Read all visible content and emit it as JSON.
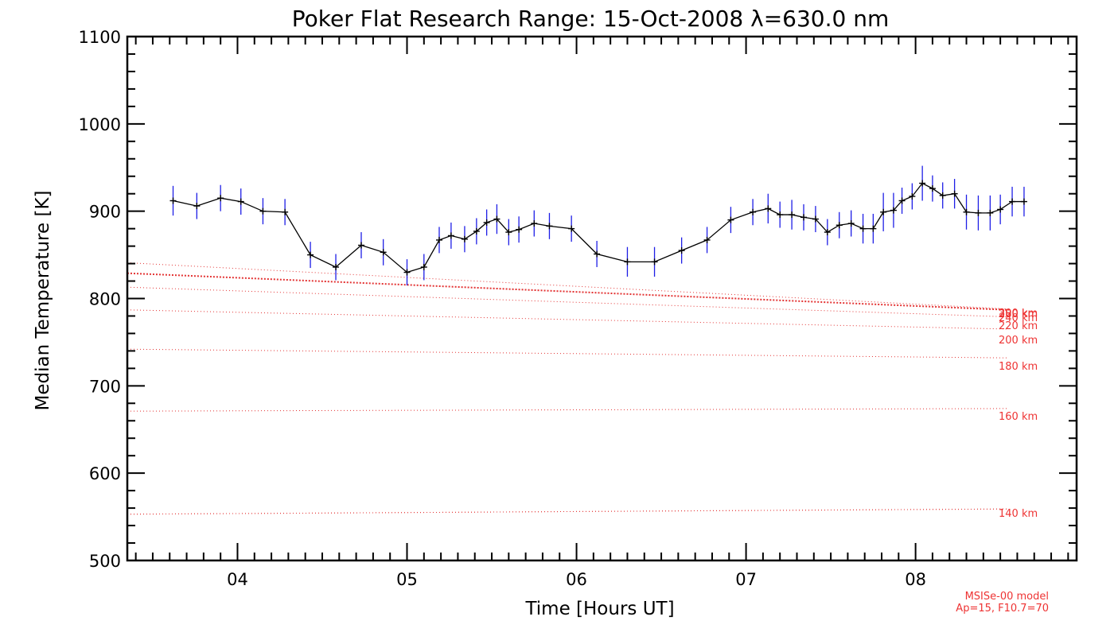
{
  "chart_data": {
    "type": "line",
    "title": "Poker Flat Research Range: 15-Oct-2008 λ=630.0 nm",
    "xlabel": "Time [Hours UT]",
    "ylabel": "Median Temperature [K]",
    "xlim": [
      3.35,
      8.95
    ],
    "ylim": [
      500,
      1100
    ],
    "x_ticks": [
      "04",
      "05",
      "06",
      "07",
      "08"
    ],
    "x_tick_values": [
      4,
      5,
      6,
      7,
      8
    ],
    "y_ticks": [
      "500",
      "600",
      "700",
      "800",
      "900",
      "1000",
      "1100"
    ],
    "y_tick_values": [
      500,
      600,
      700,
      800,
      900,
      1000,
      1100
    ],
    "grid": false,
    "model_note": [
      "MSISe-00 model",
      "Ap=15, F10.7=70"
    ],
    "colors": {
      "line": "#000000",
      "error_bars": "#1e1ee6",
      "model": "#e33333"
    },
    "series": [
      {
        "x": [
          3.62,
          3.76,
          3.9,
          4.02,
          4.15,
          4.28,
          4.43,
          4.58,
          4.73,
          4.86,
          5.0,
          5.1,
          5.19,
          5.26,
          5.34,
          5.41,
          5.47,
          5.53,
          5.6,
          5.66,
          5.75,
          5.84,
          5.97,
          6.12,
          6.3,
          6.46,
          6.62,
          6.77,
          6.91,
          7.04,
          7.13,
          7.2,
          7.27,
          7.34,
          7.41,
          7.48,
          7.55,
          7.62,
          7.69,
          7.75,
          7.81,
          7.87,
          7.92,
          7.98,
          8.04,
          8.1,
          8.16,
          8.23,
          8.3,
          8.37,
          8.44,
          8.5,
          8.57,
          8.64
        ],
        "values": [
          912,
          906,
          915,
          911,
          900,
          899,
          850,
          836,
          861,
          853,
          830,
          836,
          867,
          872,
          868,
          877,
          887,
          891,
          876,
          879,
          886,
          883,
          880,
          851,
          842,
          842,
          855,
          867,
          890,
          899,
          903,
          896,
          896,
          893,
          891,
          876,
          884,
          886,
          880,
          880,
          899,
          901,
          912,
          917,
          932,
          926,
          918,
          920,
          899,
          898,
          898,
          902,
          911,
          911
        ],
        "errors": [
          17,
          15,
          15,
          15,
          15,
          15,
          15,
          15,
          15,
          15,
          15,
          15,
          15,
          15,
          15,
          15,
          15,
          17,
          15,
          15,
          15,
          15,
          15,
          15,
          17,
          17,
          15,
          15,
          15,
          15,
          17,
          15,
          17,
          15,
          15,
          15,
          15,
          15,
          17,
          17,
          22,
          20,
          15,
          15,
          20,
          15,
          15,
          17,
          20,
          20,
          20,
          17,
          17,
          17
        ]
      }
    ],
    "model_curves": [
      {
        "label": "300 km",
        "x": [
          3.35,
          8.55
        ],
        "y": [
          829,
          787
        ]
      },
      {
        "label": "280 km",
        "x": [
          3.35,
          8.55
        ],
        "y": [
          841,
          788
        ]
      },
      {
        "label": "240 km",
        "x": [
          3.35,
          8.55
        ],
        "y": [
          813,
          779
        ]
      },
      {
        "label": "220 km",
        "x": [
          3.35,
          8.55
        ],
        "y": [
          787,
          765
        ]
      },
      {
        "label": "200 km",
        "x": [
          3.35,
          8.55
        ],
        "y": [
          742,
          732
        ]
      },
      {
        "label": "180 km",
        "x": [
          3.35,
          8.55
        ],
        "y": [
          671,
          674
        ]
      },
      {
        "label": "160 km",
        "x": [
          3.35,
          8.55
        ],
        "y": [
          553,
          559
        ]
      },
      {
        "label": "140 km",
        "x": [
          3.35,
          8.55
        ],
        "y": [
          553,
          559
        ]
      }
    ]
  }
}
